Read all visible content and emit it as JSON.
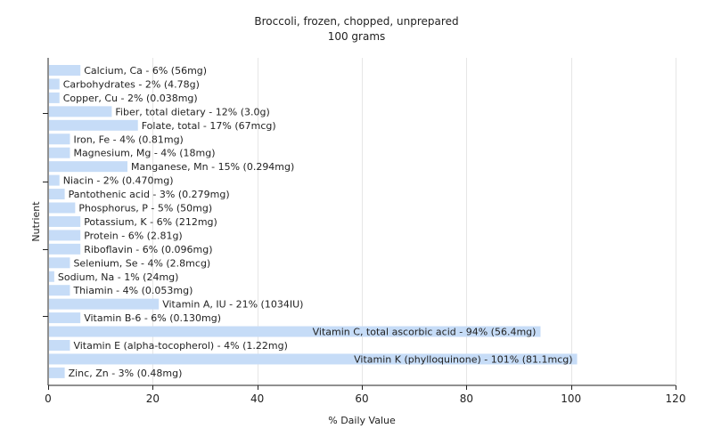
{
  "title": "Broccoli, frozen, chopped, unprepared",
  "subtitle": "100 grams",
  "chart_data": {
    "type": "bar",
    "orientation": "horizontal",
    "title": "Broccoli, frozen, chopped, unprepared",
    "subtitle": "100 grams",
    "xlabel": "% Daily Value",
    "ylabel": "Nutrient",
    "xlim": [
      0,
      120
    ],
    "xticks": [
      "0",
      "20",
      "40",
      "60",
      "80",
      "100",
      "120"
    ],
    "grid": true,
    "bar_color": "#c6dcf7",
    "categories": [
      "Calcium, Ca - 6% (56mg)",
      "Carbohydrates - 2% (4.78g)",
      "Copper, Cu - 2% (0.038mg)",
      "Fiber, total dietary - 12% (3.0g)",
      "Folate, total - 17% (67mcg)",
      "Iron, Fe - 4% (0.81mg)",
      "Magnesium, Mg - 4% (18mg)",
      "Manganese, Mn - 15% (0.294mg)",
      "Niacin - 2% (0.470mg)",
      "Pantothenic acid - 3% (0.279mg)",
      "Phosphorus, P - 5% (50mg)",
      "Potassium, K - 6% (212mg)",
      "Protein - 6% (2.81g)",
      "Riboflavin - 6% (0.096mg)",
      "Selenium, Se - 4% (2.8mcg)",
      "Sodium, Na - 1% (24mg)",
      "Thiamin - 4% (0.053mg)",
      "Vitamin A, IU - 21% (1034IU)",
      "Vitamin B-6 - 6% (0.130mg)",
      "Vitamin C, total ascorbic acid - 94% (56.4mg)",
      "Vitamin E (alpha-tocopherol) - 4% (1.22mg)",
      "Vitamin K (phylloquinone) - 101% (81.1mcg)",
      "Zinc, Zn - 3% (0.48mg)"
    ],
    "values": [
      6,
      2,
      2,
      12,
      17,
      4,
      4,
      15,
      2,
      3,
      5,
      6,
      6,
      6,
      4,
      1,
      4,
      21,
      6,
      94,
      4,
      101,
      3
    ]
  }
}
